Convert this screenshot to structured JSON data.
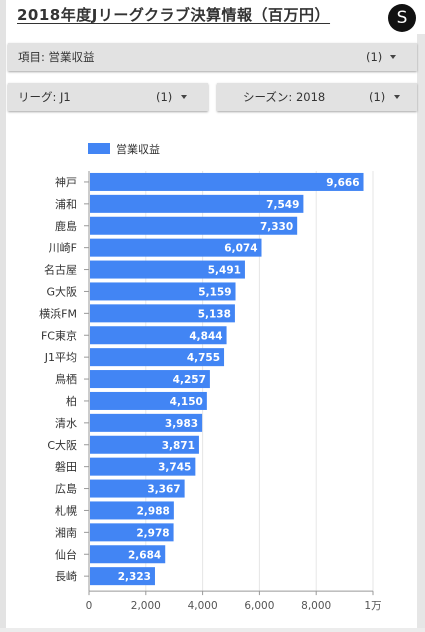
{
  "page": {
    "title": "2018年度Jリーグクラブ決算情報（百万円）",
    "logo_letter": "S"
  },
  "controls": {
    "item": {
      "label": "項目: 営業収益",
      "count": "(1)",
      "icon": "dropdown-arrow-icon"
    },
    "league": {
      "label": "リーグ: J1",
      "count": "(1)",
      "icon": "dropdown-arrow-icon"
    },
    "season": {
      "label": "シーズン: 2018",
      "count": "(1)",
      "icon": "dropdown-arrow-icon"
    }
  },
  "colors": {
    "bar": "#4285f4",
    "panel": "#e2e2e2",
    "logo": "#111111"
  },
  "chart_data": {
    "type": "bar",
    "orientation": "horizontal",
    "legend": "営業収益",
    "legend_position": "top-left",
    "categories": [
      "神戸",
      "浦和",
      "鹿島",
      "川崎F",
      "名古屋",
      "G大阪",
      "横浜FM",
      "FC東京",
      "J1平均",
      "鳥栖",
      "柏",
      "清水",
      "C大阪",
      "磐田",
      "広島",
      "札幌",
      "湘南",
      "仙台",
      "長崎"
    ],
    "values": [
      9666,
      7549,
      7330,
      6074,
      5491,
      5159,
      5138,
      4844,
      4755,
      4257,
      4150,
      3983,
      3871,
      3745,
      3367,
      2988,
      2978,
      2684,
      2323
    ],
    "value_labels": [
      "9,666",
      "7,549",
      "7,330",
      "6,074",
      "5,491",
      "5,159",
      "5,138",
      "4,844",
      "4,755",
      "4,257",
      "4,150",
      "3,983",
      "3,871",
      "3,745",
      "3,367",
      "2,988",
      "2,978",
      "2,684",
      "2,323"
    ],
    "xlim": [
      0,
      10000
    ],
    "xticks": [
      0,
      2000,
      4000,
      6000,
      8000,
      10000
    ],
    "xtick_labels": [
      "0",
      "2,000",
      "4,000",
      "6,000",
      "8,000",
      "1万"
    ],
    "grid": true
  }
}
